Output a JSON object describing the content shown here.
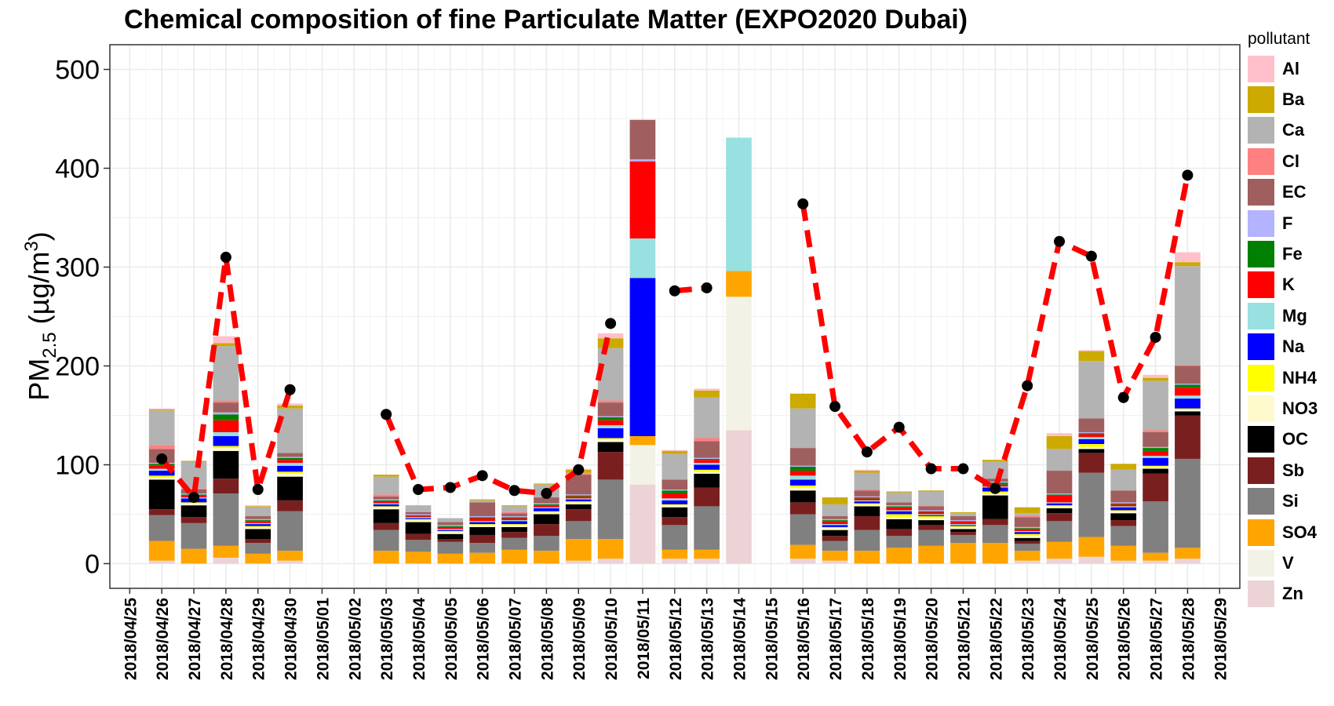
{
  "title": "Chemical composition of fine Particulate Matter (EXPO2020 Dubai)",
  "legend_title": "pollutant",
  "chart_data": {
    "type": "bar",
    "stacked": true,
    "title": "Chemical composition of fine Particulate Matter (EXPO2020 Dubai)",
    "ylabel": "PM2.5 (µg/m3)",
    "ylabel_parts": {
      "base": "PM",
      "sub": "2.5",
      "unit_open": " (µg/m",
      "sup": "3",
      "unit_close": ")"
    },
    "ylim": [
      -25,
      525
    ],
    "yticks": [
      0,
      100,
      200,
      300,
      400,
      500
    ],
    "grid": true,
    "legend_position": "right",
    "categories": [
      "2018/04/25",
      "2018/04/26",
      "2018/04/27",
      "2018/04/28",
      "2018/04/29",
      "2018/04/30",
      "2018/05/01",
      "2018/05/02",
      "2018/05/03",
      "2018/05/04",
      "2018/05/05",
      "2018/05/06",
      "2018/05/07",
      "2018/05/08",
      "2018/05/09",
      "2018/05/10",
      "2018/05/11",
      "2018/05/12",
      "2018/05/13",
      "2018/05/14",
      "2018/05/15",
      "2018/05/16",
      "2018/05/17",
      "2018/05/18",
      "2018/05/19",
      "2018/05/20",
      "2018/05/21",
      "2018/05/22",
      "2018/05/23",
      "2018/05/24",
      "2018/05/25",
      "2018/05/26",
      "2018/05/27",
      "2018/05/28",
      "2018/05/29"
    ],
    "series": [
      {
        "name": "Zn",
        "color": "#ebd3d6",
        "values": [
          null,
          3,
          0,
          6,
          0,
          3,
          null,
          null,
          0,
          0,
          0,
          0,
          0,
          0,
          3,
          5,
          80,
          5,
          5,
          135,
          null,
          5,
          3,
          0,
          0,
          0,
          0,
          0,
          3,
          5,
          7,
          3,
          3,
          5,
          null
        ]
      },
      {
        "name": "V",
        "color": "#f2f2e6",
        "values": [
          null,
          0,
          0,
          0,
          0,
          0,
          null,
          null,
          0,
          0,
          0,
          0,
          0,
          0,
          0,
          0,
          40,
          0,
          0,
          135,
          null,
          0,
          0,
          0,
          0,
          0,
          0,
          0,
          0,
          0,
          0,
          0,
          0,
          0,
          null
        ]
      },
      {
        "name": "SO4",
        "color": "#ffa500",
        "values": [
          null,
          20,
          15,
          12,
          10,
          10,
          null,
          null,
          13,
          12,
          10,
          11,
          14,
          13,
          22,
          20,
          9,
          9,
          9,
          26,
          null,
          14,
          10,
          13,
          16,
          18,
          21,
          21,
          10,
          17,
          20,
          15,
          8,
          11,
          null
        ]
      },
      {
        "name": "Si",
        "color": "#808080",
        "values": [
          null,
          26,
          26,
          53,
          11,
          40,
          null,
          null,
          21,
          12,
          12,
          10,
          12,
          15,
          18,
          60,
          0,
          25,
          44,
          0,
          null,
          31,
          10,
          21,
          12,
          16,
          8,
          18,
          7,
          21,
          65,
          20,
          52,
          90,
          null
        ]
      },
      {
        "name": "Sb",
        "color": "#7a1f1f",
        "values": [
          null,
          6,
          6,
          15,
          4,
          11,
          null,
          null,
          7,
          6,
          3,
          8,
          6,
          12,
          12,
          28,
          0,
          8,
          19,
          0,
          null,
          12,
          5,
          14,
          7,
          5,
          3,
          6,
          3,
          8,
          20,
          6,
          28,
          44,
          null
        ]
      },
      {
        "name": "OC",
        "color": "#000000",
        "values": [
          null,
          30,
          12,
          28,
          10,
          24,
          null,
          null,
          14,
          12,
          5,
          8,
          5,
          10,
          5,
          10,
          0,
          10,
          14,
          0,
          null,
          12,
          6,
          10,
          10,
          5,
          3,
          24,
          3,
          5,
          4,
          7,
          5,
          4,
          null
        ]
      },
      {
        "name": "NO3",
        "color": "#fffacd",
        "values": [
          null,
          2,
          2,
          3,
          2,
          3,
          null,
          null,
          2,
          2,
          2,
          2,
          2,
          2,
          2,
          3,
          0,
          2,
          2,
          0,
          null,
          3,
          2,
          2,
          2,
          2,
          2,
          2,
          2,
          2,
          2,
          2,
          2,
          2,
          null
        ]
      },
      {
        "name": "NH4",
        "color": "#ffff00",
        "values": [
          null,
          2,
          1,
          2,
          1,
          2,
          null,
          null,
          1,
          1,
          1,
          1,
          1,
          1,
          1,
          1,
          0,
          1,
          2,
          0,
          null,
          2,
          1,
          1,
          3,
          2,
          1,
          2,
          2,
          1,
          3,
          1,
          1,
          1,
          null
        ]
      },
      {
        "name": "Na",
        "color": "#0000ff",
        "values": [
          null,
          5,
          4,
          10,
          2,
          6,
          null,
          null,
          2,
          1,
          1,
          2,
          3,
          3,
          2,
          10,
          160,
          4,
          5,
          0,
          null,
          6,
          2,
          2,
          3,
          1,
          1,
          4,
          2,
          2,
          5,
          3,
          8,
          10,
          null
        ]
      },
      {
        "name": "Mg",
        "color": "#99e0e0",
        "values": [
          null,
          2,
          1,
          4,
          1,
          3,
          null,
          null,
          1,
          1,
          1,
          1,
          1,
          1,
          1,
          3,
          40,
          2,
          2,
          135,
          null,
          4,
          1,
          1,
          1,
          1,
          1,
          1,
          1,
          1,
          2,
          1,
          2,
          3,
          null
        ]
      },
      {
        "name": "K",
        "color": "#ff0000",
        "values": [
          null,
          3,
          2,
          12,
          2,
          3,
          null,
          null,
          2,
          1,
          2,
          3,
          2,
          2,
          2,
          5,
          78,
          5,
          3,
          0,
          null,
          5,
          3,
          2,
          3,
          2,
          3,
          2,
          2,
          7,
          3,
          2,
          5,
          8,
          null
        ]
      },
      {
        "name": "Fe",
        "color": "#008000",
        "values": [
          null,
          2,
          1,
          6,
          1,
          2,
          null,
          null,
          1,
          1,
          1,
          1,
          1,
          1,
          1,
          3,
          0,
          3,
          1,
          0,
          null,
          4,
          1,
          1,
          1,
          1,
          0,
          2,
          1,
          1,
          1,
          1,
          3,
          3,
          null
        ]
      },
      {
        "name": "F",
        "color": "#b3b3ff",
        "values": [
          null,
          1,
          1,
          2,
          1,
          1,
          null,
          null,
          1,
          1,
          1,
          1,
          1,
          1,
          1,
          1,
          2,
          1,
          1,
          0,
          null,
          1,
          1,
          1,
          1,
          1,
          1,
          1,
          1,
          1,
          1,
          1,
          1,
          1,
          null
        ]
      },
      {
        "name": "EC",
        "color": "#a05f5f",
        "values": [
          null,
          14,
          4,
          10,
          3,
          4,
          null,
          null,
          3,
          2,
          3,
          14,
          3,
          6,
          20,
          14,
          40,
          10,
          17,
          0,
          null,
          18,
          3,
          6,
          3,
          4,
          4,
          3,
          10,
          23,
          14,
          12,
          15,
          18,
          null
        ]
      },
      {
        "name": "Cl",
        "color": "#ff8080",
        "values": [
          null,
          4,
          1,
          2,
          0,
          0,
          null,
          null,
          2,
          0,
          0,
          0,
          1,
          0,
          1,
          2,
          0,
          0,
          3,
          0,
          null,
          0,
          0,
          1,
          0,
          1,
          0,
          0,
          1,
          0,
          0,
          0,
          2,
          1,
          null
        ]
      },
      {
        "name": "Ca",
        "color": "#b3b3b3",
        "values": [
          null,
          35,
          27,
          55,
          9,
          45,
          null,
          null,
          18,
          7,
          4,
          2,
          6,
          13,
          1,
          53,
          0,
          26,
          41,
          0,
          null,
          40,
          12,
          17,
          10,
          14,
          3,
          17,
          3,
          22,
          58,
          21,
          50,
          100,
          null
        ]
      },
      {
        "name": "Ba",
        "color": "#ccaa00",
        "values": [
          null,
          1,
          1,
          3,
          1,
          3,
          null,
          null,
          2,
          0,
          0,
          1,
          1,
          1,
          3,
          10,
          0,
          3,
          7,
          0,
          null,
          15,
          7,
          2,
          1,
          1,
          1,
          2,
          6,
          13,
          10,
          6,
          3,
          4,
          null
        ]
      },
      {
        "name": "Al",
        "color": "#ffc0cb",
        "values": [
          null,
          1,
          0,
          7,
          1,
          2,
          null,
          null,
          0,
          0,
          0,
          0,
          0,
          0,
          1,
          5,
          0,
          1,
          2,
          0,
          null,
          0,
          0,
          1,
          0,
          0,
          0,
          0,
          0,
          3,
          1,
          0,
          3,
          10,
          null
        ]
      }
    ],
    "total_line": {
      "color": "#ff0000",
      "style": "dashed",
      "values": [
        null,
        106,
        67,
        310,
        75,
        176,
        null,
        null,
        151,
        75,
        77,
        89,
        74,
        71,
        95,
        243,
        null,
        276,
        279,
        null,
        null,
        364,
        159,
        113,
        138,
        96,
        96,
        76,
        180,
        326,
        311,
        168,
        229,
        393,
        null
      ]
    }
  }
}
